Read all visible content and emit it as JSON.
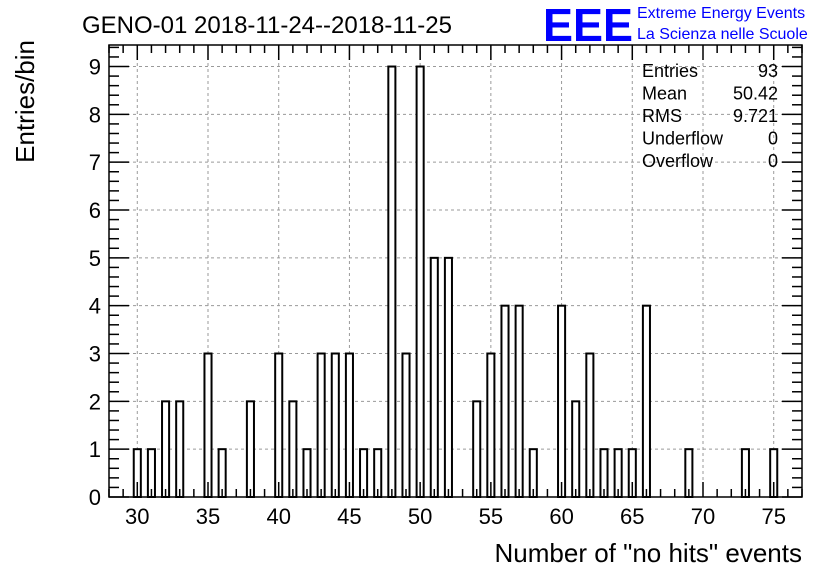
{
  "title": "GENO-01 2018-11-24--2018-11-25",
  "logo": {
    "letters": "EEE",
    "line1": "Extreme Energy Events",
    "line2": "La Scienza nelle Scuole",
    "color": "#0000ff"
  },
  "stats": [
    {
      "label": "Entries",
      "value": "93"
    },
    {
      "label": "Mean",
      "value": "50.42"
    },
    {
      "label": "RMS",
      "value": "9.721"
    },
    {
      "label": "Underflow",
      "value": "0"
    },
    {
      "label": "Overflow",
      "value": "0"
    }
  ],
  "chart_data": {
    "type": "bar",
    "histogram": true,
    "title": "GENO-01 2018-11-24--2018-11-25",
    "xlabel": "Number of \"no hits\" events",
    "ylabel": "Entries/bin",
    "xlim": [
      28,
      77
    ],
    "ylim": [
      0,
      9.45
    ],
    "x_ticks": [
      30,
      35,
      40,
      45,
      50,
      55,
      60,
      65,
      70,
      75
    ],
    "y_ticks": [
      0,
      1,
      2,
      3,
      4,
      5,
      6,
      7,
      8,
      9
    ],
    "grid": true,
    "legend": "none",
    "bin_width": 1,
    "bar_width_fraction": 0.5,
    "x": [
      30,
      31,
      32,
      33,
      35,
      36,
      38,
      40,
      41,
      42,
      43,
      44,
      45,
      46,
      47,
      48,
      49,
      50,
      51,
      52,
      54,
      55,
      56,
      57,
      58,
      60,
      61,
      62,
      63,
      64,
      65,
      66,
      69,
      73,
      75
    ],
    "values": [
      1,
      1,
      2,
      2,
      3,
      1,
      2,
      3,
      2,
      1,
      3,
      3,
      3,
      1,
      1,
      9,
      3,
      9,
      5,
      5,
      2,
      3,
      4,
      4,
      1,
      4,
      2,
      3,
      1,
      1,
      1,
      4,
      1,
      1,
      1
    ]
  }
}
